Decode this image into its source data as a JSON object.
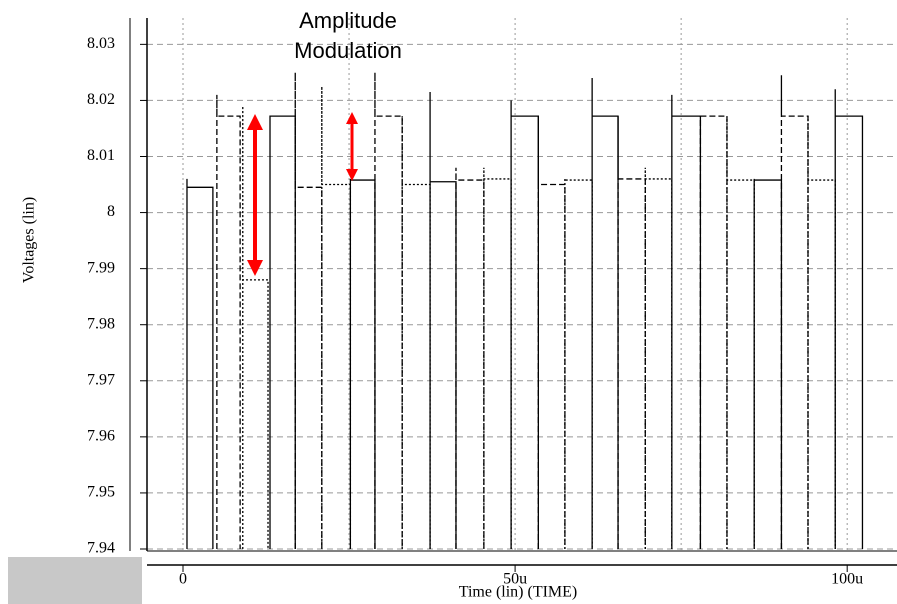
{
  "chart_data": {
    "type": "pulse",
    "title": [
      "Amplitude",
      "Modulation"
    ],
    "x_label": "Time (lin) (TIME)",
    "y_label": "Voltages (lin)",
    "xlim": [
      -5.42,
      107.5
    ],
    "ylim": [
      7.94,
      8.0347
    ],
    "xticks": [
      0,
      {
        "value": 50,
        "label": "50u"
      },
      {
        "value": 100,
        "label": "100u"
      }
    ],
    "xgrid": [
      0,
      25,
      50,
      75,
      100
    ],
    "yticks": [
      7.94,
      7.95,
      7.96,
      7.97,
      7.98,
      7.99,
      8,
      8.01,
      8.02,
      8.03
    ],
    "grid": true,
    "color": "#000000",
    "pulses": {
      "start": [
        0.6,
        5.1,
        9.0,
        13.1,
        16.9,
        20.9,
        25.2,
        28.9,
        33.0,
        37.2,
        41.1,
        45.3,
        49.4,
        53.5,
        57.5,
        61.6,
        65.5,
        69.6,
        73.6,
        77.9,
        81.9,
        86.0,
        90.1,
        94.1,
        98.2
      ],
      "end": [
        4.5,
        8.6,
        12.8,
        16.9,
        20.9,
        25.2,
        28.9,
        33.0,
        37.2,
        41.1,
        45.3,
        49.4,
        53.5,
        57.5,
        61.6,
        65.5,
        69.6,
        73.6,
        77.9,
        81.9,
        86.0,
        90.1,
        94.1,
        98.2,
        102.3
      ],
      "values": [
        8.0045,
        8.0172,
        7.988,
        8.0172,
        8.0045,
        8.005,
        8.0058,
        8.0172,
        8.005,
        8.0055,
        8.0058,
        8.006,
        8.0172,
        8.005,
        8.0058,
        8.0172,
        8.006,
        8.006,
        8.0172,
        8.0172,
        8.0058,
        8.0058,
        8.0172,
        8.0058,
        8.0172
      ],
      "peaks": [
        8.006,
        8.021,
        8.019,
        8.0172,
        8.025,
        8.0225,
        8.006,
        8.025,
        8.0172,
        8.0215,
        8.008,
        8.008,
        8.02,
        8.0172,
        8.006,
        8.024,
        8.0172,
        8.008,
        8.021,
        8.0172,
        8.0172,
        8.006,
        8.0245,
        8.0172,
        8.022
      ]
    }
  }
}
